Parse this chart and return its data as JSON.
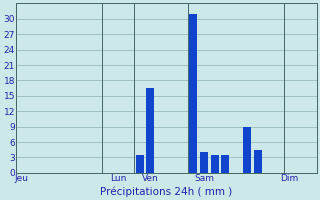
{
  "xlabel": "Précipitations 24h ( mm )",
  "background_color": "#cce8e8",
  "bar_color": "#1144cc",
  "grid_color": "#99bbbb",
  "axis_color": "#2222aa",
  "vline_color": "#446666",
  "ylim": [
    0,
    33
  ],
  "yticks": [
    0,
    3,
    6,
    9,
    12,
    15,
    18,
    21,
    24,
    27,
    30
  ],
  "xlim": [
    0,
    28
  ],
  "day_labels": [
    "Jeu",
    "Lun",
    "Ven",
    "Sam",
    "Dim"
  ],
  "day_tick_positions": [
    0.5,
    9.5,
    12.5,
    17.5,
    25.5
  ],
  "vline_positions": [
    0,
    8,
    11,
    16,
    25
  ],
  "bar_positions": [
    11.5,
    12.5,
    16.5,
    17.5,
    18.5,
    19.5,
    21.5,
    22.5
  ],
  "bar_heights": [
    3.5,
    16.5,
    31.0,
    4.0,
    3.5,
    3.5,
    9.0,
    4.5
  ],
  "bar_width": 0.75
}
